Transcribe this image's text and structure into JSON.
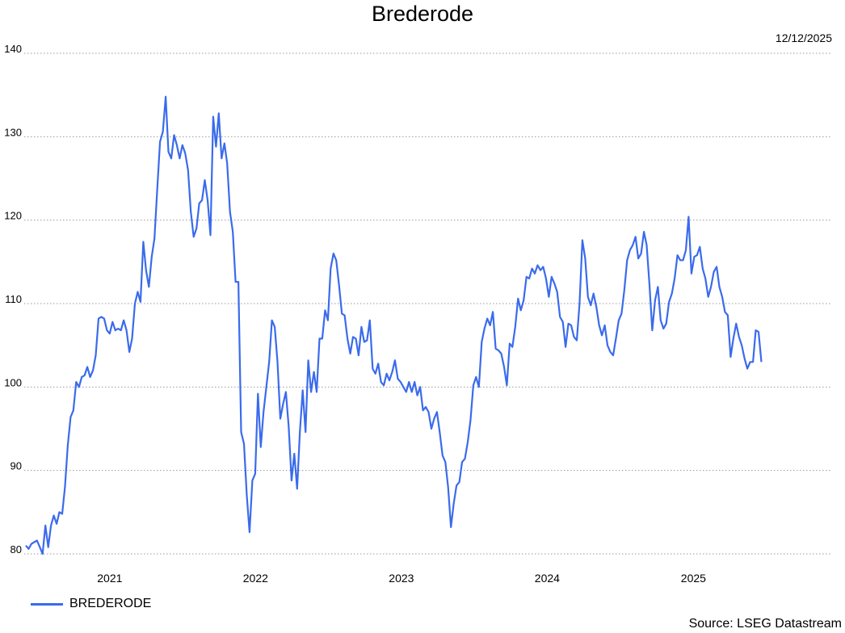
{
  "title": "Brederode",
  "date": "12/12/2025",
  "source": "Source: LSEG Datastream",
  "colors": {
    "series": "#3a6bec",
    "grid": "#9a9a9a"
  },
  "chart_data": {
    "type": "line",
    "title": "Brederode",
    "xlabel": "",
    "ylabel": "",
    "ylim": [
      80,
      140
    ],
    "yticks": [
      80,
      90,
      100,
      110,
      120,
      130,
      140
    ],
    "xlim": [
      "2020-06-01",
      "2025-12-12"
    ],
    "xticks": [
      {
        "label": "2021",
        "date": "2021-01-01"
      },
      {
        "label": "2022",
        "date": "2022-01-01"
      },
      {
        "label": "2023",
        "date": "2023-01-01"
      },
      {
        "label": "2024",
        "date": "2024-01-01"
      },
      {
        "label": "2025",
        "date": "2025-01-01"
      }
    ],
    "grid": true,
    "legend_position": "bottom-left",
    "series": [
      {
        "name": "BREDERODE",
        "points": [
          [
            "2020-06-05",
            81.0
          ],
          [
            "2020-06-12",
            80.6
          ],
          [
            "2020-06-19",
            81.2
          ],
          [
            "2020-06-26",
            81.4
          ],
          [
            "2020-07-03",
            81.6
          ],
          [
            "2020-07-10",
            80.8
          ],
          [
            "2020-07-17",
            80.0
          ],
          [
            "2020-07-24",
            83.4
          ],
          [
            "2020-07-31",
            80.8
          ],
          [
            "2020-08-07",
            83.4
          ],
          [
            "2020-08-14",
            84.6
          ],
          [
            "2020-08-21",
            83.6
          ],
          [
            "2020-08-28",
            85.0
          ],
          [
            "2020-09-04",
            84.8
          ],
          [
            "2020-09-11",
            88.0
          ],
          [
            "2020-09-18",
            93.0
          ],
          [
            "2020-09-25",
            96.4
          ],
          [
            "2020-10-02",
            97.2
          ],
          [
            "2020-10-09",
            100.6
          ],
          [
            "2020-10-16",
            100.0
          ],
          [
            "2020-10-23",
            101.2
          ],
          [
            "2020-10-30",
            101.4
          ],
          [
            "2020-11-06",
            102.4
          ],
          [
            "2020-11-13",
            101.2
          ],
          [
            "2020-11-20",
            102.0
          ],
          [
            "2020-11-27",
            103.8
          ],
          [
            "2020-12-04",
            108.2
          ],
          [
            "2020-12-11",
            108.4
          ],
          [
            "2020-12-18",
            108.2
          ],
          [
            "2020-12-25",
            106.8
          ],
          [
            "2021-01-01",
            106.4
          ],
          [
            "2021-01-08",
            107.8
          ],
          [
            "2021-01-15",
            106.8
          ],
          [
            "2021-01-22",
            107.0
          ],
          [
            "2021-01-29",
            106.8
          ],
          [
            "2021-02-05",
            108.0
          ],
          [
            "2021-02-12",
            106.8
          ],
          [
            "2021-02-19",
            104.2
          ],
          [
            "2021-02-26",
            105.8
          ],
          [
            "2021-03-05",
            110.0
          ],
          [
            "2021-03-12",
            111.4
          ],
          [
            "2021-03-19",
            110.2
          ],
          [
            "2021-03-26",
            117.4
          ],
          [
            "2021-04-02",
            114.0
          ],
          [
            "2021-04-09",
            112.0
          ],
          [
            "2021-04-16",
            115.6
          ],
          [
            "2021-04-23",
            117.8
          ],
          [
            "2021-04-30",
            123.8
          ],
          [
            "2021-05-07",
            129.4
          ],
          [
            "2021-05-14",
            130.6
          ],
          [
            "2021-05-21",
            134.8
          ],
          [
            "2021-05-28",
            128.2
          ],
          [
            "2021-06-04",
            127.4
          ],
          [
            "2021-06-11",
            130.2
          ],
          [
            "2021-06-18",
            129.0
          ],
          [
            "2021-06-25",
            127.4
          ],
          [
            "2021-07-02",
            129.0
          ],
          [
            "2021-07-09",
            128.0
          ],
          [
            "2021-07-16",
            126.0
          ],
          [
            "2021-07-23",
            121.0
          ],
          [
            "2021-07-30",
            118.0
          ],
          [
            "2021-08-06",
            119.0
          ],
          [
            "2021-08-13",
            122.0
          ],
          [
            "2021-08-20",
            122.4
          ],
          [
            "2021-08-27",
            124.8
          ],
          [
            "2021-09-03",
            122.4
          ],
          [
            "2021-09-10",
            118.2
          ],
          [
            "2021-09-17",
            132.4
          ],
          [
            "2021-09-24",
            128.8
          ],
          [
            "2021-10-01",
            132.8
          ],
          [
            "2021-10-08",
            127.4
          ],
          [
            "2021-10-15",
            129.2
          ],
          [
            "2021-10-22",
            126.8
          ],
          [
            "2021-10-29",
            121.0
          ],
          [
            "2021-11-05",
            118.6
          ],
          [
            "2021-11-12",
            112.6
          ],
          [
            "2021-11-19",
            112.6
          ],
          [
            "2021-11-26",
            94.6
          ],
          [
            "2021-12-03",
            93.2
          ],
          [
            "2021-12-10",
            87.0
          ],
          [
            "2021-12-17",
            82.6
          ],
          [
            "2021-12-24",
            88.8
          ],
          [
            "2021-12-31",
            89.6
          ],
          [
            "2022-01-07",
            99.2
          ],
          [
            "2022-01-14",
            92.8
          ],
          [
            "2022-01-21",
            97.0
          ],
          [
            "2022-01-28",
            100.0
          ],
          [
            "2022-02-04",
            103.0
          ],
          [
            "2022-02-11",
            108.0
          ],
          [
            "2022-02-18",
            107.2
          ],
          [
            "2022-02-25",
            103.0
          ],
          [
            "2022-03-04",
            96.2
          ],
          [
            "2022-03-11",
            98.0
          ],
          [
            "2022-03-18",
            99.4
          ],
          [
            "2022-03-25",
            95.2
          ],
          [
            "2022-04-01",
            88.8
          ],
          [
            "2022-04-08",
            92.0
          ],
          [
            "2022-04-15",
            87.8
          ],
          [
            "2022-04-22",
            94.6
          ],
          [
            "2022-04-29",
            99.6
          ],
          [
            "2022-05-06",
            94.6
          ],
          [
            "2022-05-13",
            103.2
          ],
          [
            "2022-05-20",
            99.4
          ],
          [
            "2022-05-27",
            101.8
          ],
          [
            "2022-06-03",
            99.4
          ],
          [
            "2022-06-10",
            105.8
          ],
          [
            "2022-06-17",
            105.8
          ],
          [
            "2022-06-24",
            109.2
          ],
          [
            "2022-07-01",
            108.0
          ],
          [
            "2022-07-08",
            114.2
          ],
          [
            "2022-07-15",
            116.0
          ],
          [
            "2022-07-22",
            115.2
          ],
          [
            "2022-07-29",
            112.2
          ],
          [
            "2022-08-05",
            108.8
          ],
          [
            "2022-08-12",
            108.6
          ],
          [
            "2022-08-19",
            105.8
          ],
          [
            "2022-08-26",
            104.0
          ],
          [
            "2022-09-02",
            106.0
          ],
          [
            "2022-09-09",
            105.8
          ],
          [
            "2022-09-16",
            103.8
          ],
          [
            "2022-09-23",
            107.2
          ],
          [
            "2022-09-30",
            105.4
          ],
          [
            "2022-10-07",
            105.6
          ],
          [
            "2022-10-14",
            108.0
          ],
          [
            "2022-10-21",
            102.2
          ],
          [
            "2022-10-28",
            101.6
          ],
          [
            "2022-11-04",
            102.8
          ],
          [
            "2022-11-11",
            100.6
          ],
          [
            "2022-11-18",
            100.2
          ],
          [
            "2022-11-25",
            101.6
          ],
          [
            "2022-12-02",
            100.8
          ],
          [
            "2022-12-09",
            101.8
          ],
          [
            "2022-12-16",
            103.2
          ],
          [
            "2022-12-23",
            101.0
          ],
          [
            "2022-12-30",
            100.6
          ],
          [
            "2023-01-06",
            100.0
          ],
          [
            "2023-01-13",
            99.4
          ],
          [
            "2023-01-20",
            100.6
          ],
          [
            "2023-01-27",
            99.4
          ],
          [
            "2023-02-03",
            100.6
          ],
          [
            "2023-02-10",
            99.0
          ],
          [
            "2023-02-17",
            100.0
          ],
          [
            "2023-02-24",
            97.2
          ],
          [
            "2023-03-03",
            97.6
          ],
          [
            "2023-03-10",
            97.0
          ],
          [
            "2023-03-17",
            95.0
          ],
          [
            "2023-03-24",
            96.2
          ],
          [
            "2023-03-31",
            97.0
          ],
          [
            "2023-04-07",
            94.6
          ],
          [
            "2023-04-14",
            91.8
          ],
          [
            "2023-04-21",
            91.0
          ],
          [
            "2023-04-28",
            88.0
          ],
          [
            "2023-05-05",
            83.2
          ],
          [
            "2023-05-12",
            86.0
          ],
          [
            "2023-05-19",
            88.2
          ],
          [
            "2023-05-26",
            88.6
          ],
          [
            "2023-06-02",
            91.0
          ],
          [
            "2023-06-09",
            91.4
          ],
          [
            "2023-06-16",
            93.4
          ],
          [
            "2023-06-23",
            96.0
          ],
          [
            "2023-06-30",
            100.2
          ],
          [
            "2023-07-07",
            101.2
          ],
          [
            "2023-07-14",
            100.0
          ],
          [
            "2023-07-21",
            105.4
          ],
          [
            "2023-07-28",
            107.0
          ],
          [
            "2023-08-04",
            108.2
          ],
          [
            "2023-08-11",
            107.4
          ],
          [
            "2023-08-18",
            109.0
          ],
          [
            "2023-08-25",
            104.6
          ],
          [
            "2023-09-01",
            104.4
          ],
          [
            "2023-09-08",
            104.0
          ],
          [
            "2023-09-15",
            102.4
          ],
          [
            "2023-09-22",
            100.2
          ],
          [
            "2023-09-29",
            105.2
          ],
          [
            "2023-10-06",
            104.8
          ],
          [
            "2023-10-13",
            107.2
          ],
          [
            "2023-10-20",
            110.6
          ],
          [
            "2023-10-27",
            109.2
          ],
          [
            "2023-11-03",
            110.4
          ],
          [
            "2023-11-10",
            113.2
          ],
          [
            "2023-11-17",
            113.0
          ],
          [
            "2023-11-24",
            114.2
          ],
          [
            "2023-12-01",
            113.6
          ],
          [
            "2023-12-08",
            114.6
          ],
          [
            "2023-12-15",
            114.0
          ],
          [
            "2023-12-22",
            114.4
          ],
          [
            "2023-12-29",
            113.0
          ],
          [
            "2024-01-05",
            110.8
          ],
          [
            "2024-01-12",
            113.2
          ],
          [
            "2024-01-19",
            112.4
          ],
          [
            "2024-01-26",
            111.4
          ],
          [
            "2024-02-02",
            108.4
          ],
          [
            "2024-02-09",
            107.8
          ],
          [
            "2024-02-16",
            104.8
          ],
          [
            "2024-02-23",
            107.6
          ],
          [
            "2024-03-01",
            107.4
          ],
          [
            "2024-03-08",
            106.0
          ],
          [
            "2024-03-15",
            105.6
          ],
          [
            "2024-03-22",
            110.0
          ],
          [
            "2024-03-29",
            117.6
          ],
          [
            "2024-04-05",
            115.4
          ],
          [
            "2024-04-12",
            110.8
          ],
          [
            "2024-04-19",
            109.8
          ],
          [
            "2024-04-26",
            111.2
          ],
          [
            "2024-05-03",
            109.6
          ],
          [
            "2024-05-10",
            107.4
          ],
          [
            "2024-05-17",
            106.2
          ],
          [
            "2024-05-24",
            107.4
          ],
          [
            "2024-05-31",
            105.0
          ],
          [
            "2024-06-07",
            104.2
          ],
          [
            "2024-06-14",
            103.8
          ],
          [
            "2024-06-21",
            105.8
          ],
          [
            "2024-06-28",
            108.0
          ],
          [
            "2024-07-05",
            108.8
          ],
          [
            "2024-07-12",
            111.6
          ],
          [
            "2024-07-19",
            115.2
          ],
          [
            "2024-07-26",
            116.4
          ],
          [
            "2024-08-02",
            117.0
          ],
          [
            "2024-08-09",
            118.0
          ],
          [
            "2024-08-16",
            115.4
          ],
          [
            "2024-08-23",
            116.0
          ],
          [
            "2024-08-30",
            118.6
          ],
          [
            "2024-09-06",
            117.0
          ],
          [
            "2024-09-13",
            112.2
          ],
          [
            "2024-09-20",
            106.8
          ],
          [
            "2024-09-27",
            110.4
          ],
          [
            "2024-10-04",
            112.0
          ],
          [
            "2024-10-11",
            108.0
          ],
          [
            "2024-10-18",
            107.0
          ],
          [
            "2024-10-25",
            107.6
          ],
          [
            "2024-11-01",
            110.2
          ],
          [
            "2024-11-08",
            111.2
          ],
          [
            "2024-11-15",
            113.0
          ],
          [
            "2024-11-22",
            115.8
          ],
          [
            "2024-11-29",
            115.2
          ],
          [
            "2024-12-06",
            115.2
          ],
          [
            "2024-12-13",
            116.4
          ],
          [
            "2024-12-20",
            120.4
          ],
          [
            "2024-12-27",
            113.6
          ],
          [
            "2025-01-03",
            115.6
          ],
          [
            "2025-01-10",
            115.8
          ],
          [
            "2025-01-17",
            116.8
          ],
          [
            "2025-01-24",
            114.2
          ],
          [
            "2025-01-31",
            113.0
          ],
          [
            "2025-02-07",
            110.8
          ],
          [
            "2025-02-14",
            112.0
          ],
          [
            "2025-02-21",
            113.8
          ],
          [
            "2025-02-28",
            114.4
          ],
          [
            "2025-03-07",
            112.0
          ],
          [
            "2025-03-14",
            110.8
          ],
          [
            "2025-03-21",
            109.0
          ],
          [
            "2025-03-28",
            108.6
          ],
          [
            "2025-04-04",
            103.6
          ],
          [
            "2025-04-11",
            105.8
          ],
          [
            "2025-04-18",
            107.6
          ],
          [
            "2025-04-25",
            106.0
          ],
          [
            "2025-05-02",
            105.0
          ],
          [
            "2025-05-09",
            103.4
          ],
          [
            "2025-05-16",
            102.2
          ],
          [
            "2025-05-23",
            103.0
          ],
          [
            "2025-05-30",
            103.0
          ],
          [
            "2025-06-06",
            106.8
          ],
          [
            "2025-06-13",
            106.6
          ],
          [
            "2025-06-20",
            103.0
          ]
        ]
      }
    ]
  }
}
